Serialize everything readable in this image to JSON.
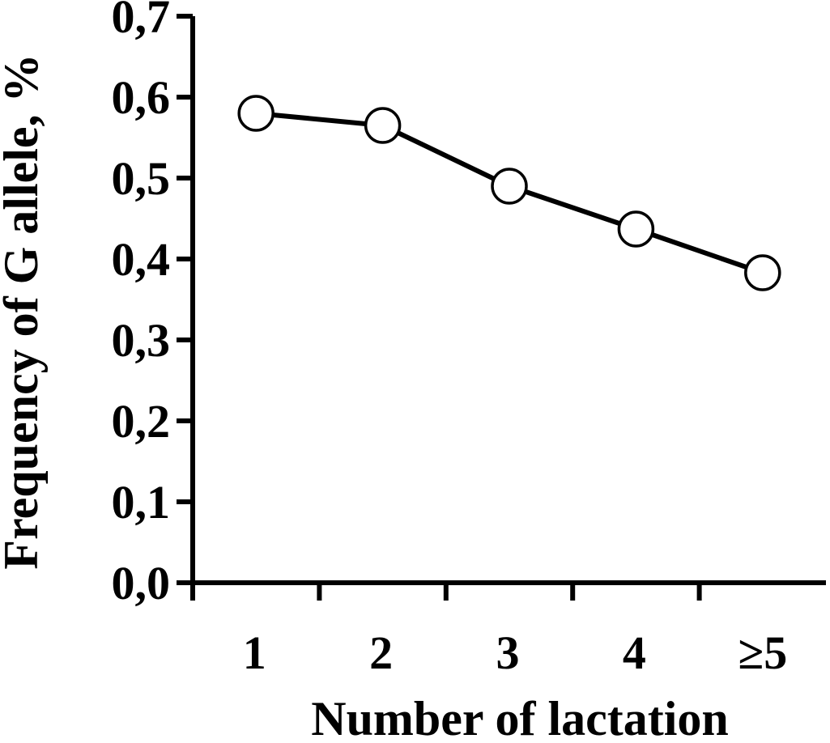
{
  "chart_data": {
    "type": "line",
    "title": "",
    "xlabel": "Number of lactation",
    "ylabel": "Frequency of G allele, %",
    "categories": [
      "1",
      "2",
      "3",
      "4",
      "≥5"
    ],
    "series": [
      {
        "values": [
          0.58,
          0.565,
          0.49,
          0.437,
          0.383
        ]
      }
    ],
    "ylim": [
      0.0,
      0.7
    ],
    "yticks": [
      "0,0",
      "0,1",
      "0,2",
      "0,3",
      "0,4",
      "0,5",
      "0,6",
      "0,7"
    ],
    "grid": false,
    "legend": "none",
    "colors": {
      "line": "#000000",
      "marker_fill": "#ffffff",
      "marker_stroke": "#000000",
      "axis": "#000000"
    }
  }
}
